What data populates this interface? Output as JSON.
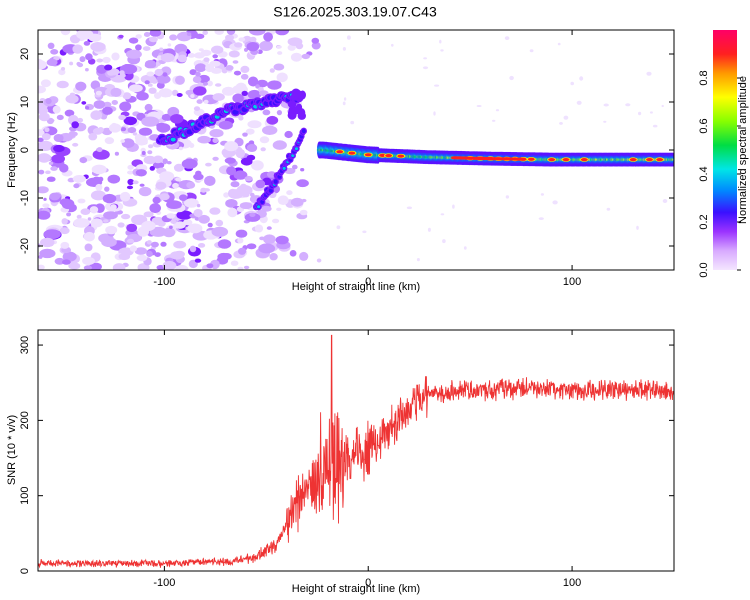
{
  "title": "S126.2025.303.19.07.C43",
  "chart_data": [
    {
      "type": "heatmap",
      "name": "spectrogram",
      "xlabel": "Height of straight line (km)",
      "ylabel": "Frequency (Hz)",
      "xlim": [
        -162,
        150
      ],
      "ylim": [
        -25,
        25
      ],
      "xticks": [
        -100,
        0,
        100
      ],
      "xtick_labels": [
        "-100",
        "0",
        "100"
      ],
      "yticks": [
        -20,
        -10,
        0,
        10,
        20
      ],
      "ytick_labels": [
        "-20",
        "-10",
        "0",
        "10",
        "20"
      ],
      "ridge": [
        {
          "x": -100,
          "y": 2
        },
        {
          "x": -90,
          "y": 4
        },
        {
          "x": -80,
          "y": 6
        },
        {
          "x": -70,
          "y": 8
        },
        {
          "x": -60,
          "y": 9
        },
        {
          "x": -50,
          "y": 10
        },
        {
          "x": -40,
          "y": 11
        }
      ],
      "descending_branch": [
        {
          "x": -55,
          "y": -12
        },
        {
          "x": -48,
          "y": -8
        },
        {
          "x": -42,
          "y": -4
        },
        {
          "x": -36,
          "y": 0
        },
        {
          "x": -31,
          "y": 5
        }
      ],
      "plateau": [
        {
          "x": -22,
          "y": 0
        },
        {
          "x": 0,
          "y": -1
        },
        {
          "x": 30,
          "y": -1.5
        },
        {
          "x": 60,
          "y": -1.8
        },
        {
          "x": 90,
          "y": -2
        },
        {
          "x": 120,
          "y": -2
        },
        {
          "x": 150,
          "y": -2
        }
      ],
      "colorbar": {
        "label": "Normalized spectral amplitude",
        "range": [
          0,
          1
        ],
        "ticks": [
          0.0,
          0.2,
          0.4,
          0.6,
          0.8
        ],
        "tick_labels": [
          "0.0",
          "0.2",
          "0.4",
          "0.6",
          "0.8"
        ]
      }
    },
    {
      "type": "line",
      "name": "snr",
      "xlabel": "Height of straight line (km)",
      "ylabel": "SNR (10 * v/v)",
      "xlim": [
        -162,
        150
      ],
      "ylim": [
        0,
        320
      ],
      "xticks": [
        -100,
        0,
        100
      ],
      "xtick_labels": [
        "-100",
        "0",
        "100"
      ],
      "yticks": [
        0,
        100,
        200,
        300
      ],
      "ytick_labels": [
        "0",
        "100",
        "200",
        "300"
      ],
      "color": "#ee3333",
      "envelope": [
        {
          "x": -162,
          "y": 10
        },
        {
          "x": -100,
          "y": 10
        },
        {
          "x": -70,
          "y": 12
        },
        {
          "x": -55,
          "y": 18
        },
        {
          "x": -45,
          "y": 35
        },
        {
          "x": -38,
          "y": 70
        },
        {
          "x": -33,
          "y": 100
        },
        {
          "x": -28,
          "y": 110
        },
        {
          "x": -24,
          "y": 120
        },
        {
          "x": -20,
          "y": 140
        },
        {
          "x": -15,
          "y": 150
        },
        {
          "x": -10,
          "y": 150
        },
        {
          "x": -5,
          "y": 155
        },
        {
          "x": 0,
          "y": 160
        },
        {
          "x": 5,
          "y": 175
        },
        {
          "x": 10,
          "y": 190
        },
        {
          "x": 15,
          "y": 205
        },
        {
          "x": 20,
          "y": 218
        },
        {
          "x": 25,
          "y": 228
        },
        {
          "x": 30,
          "y": 235
        },
        {
          "x": 40,
          "y": 238
        },
        {
          "x": 60,
          "y": 240
        },
        {
          "x": 80,
          "y": 242
        },
        {
          "x": 100,
          "y": 240
        },
        {
          "x": 120,
          "y": 241
        },
        {
          "x": 150,
          "y": 240
        }
      ],
      "peak": {
        "x": -18,
        "y": 313
      }
    }
  ]
}
